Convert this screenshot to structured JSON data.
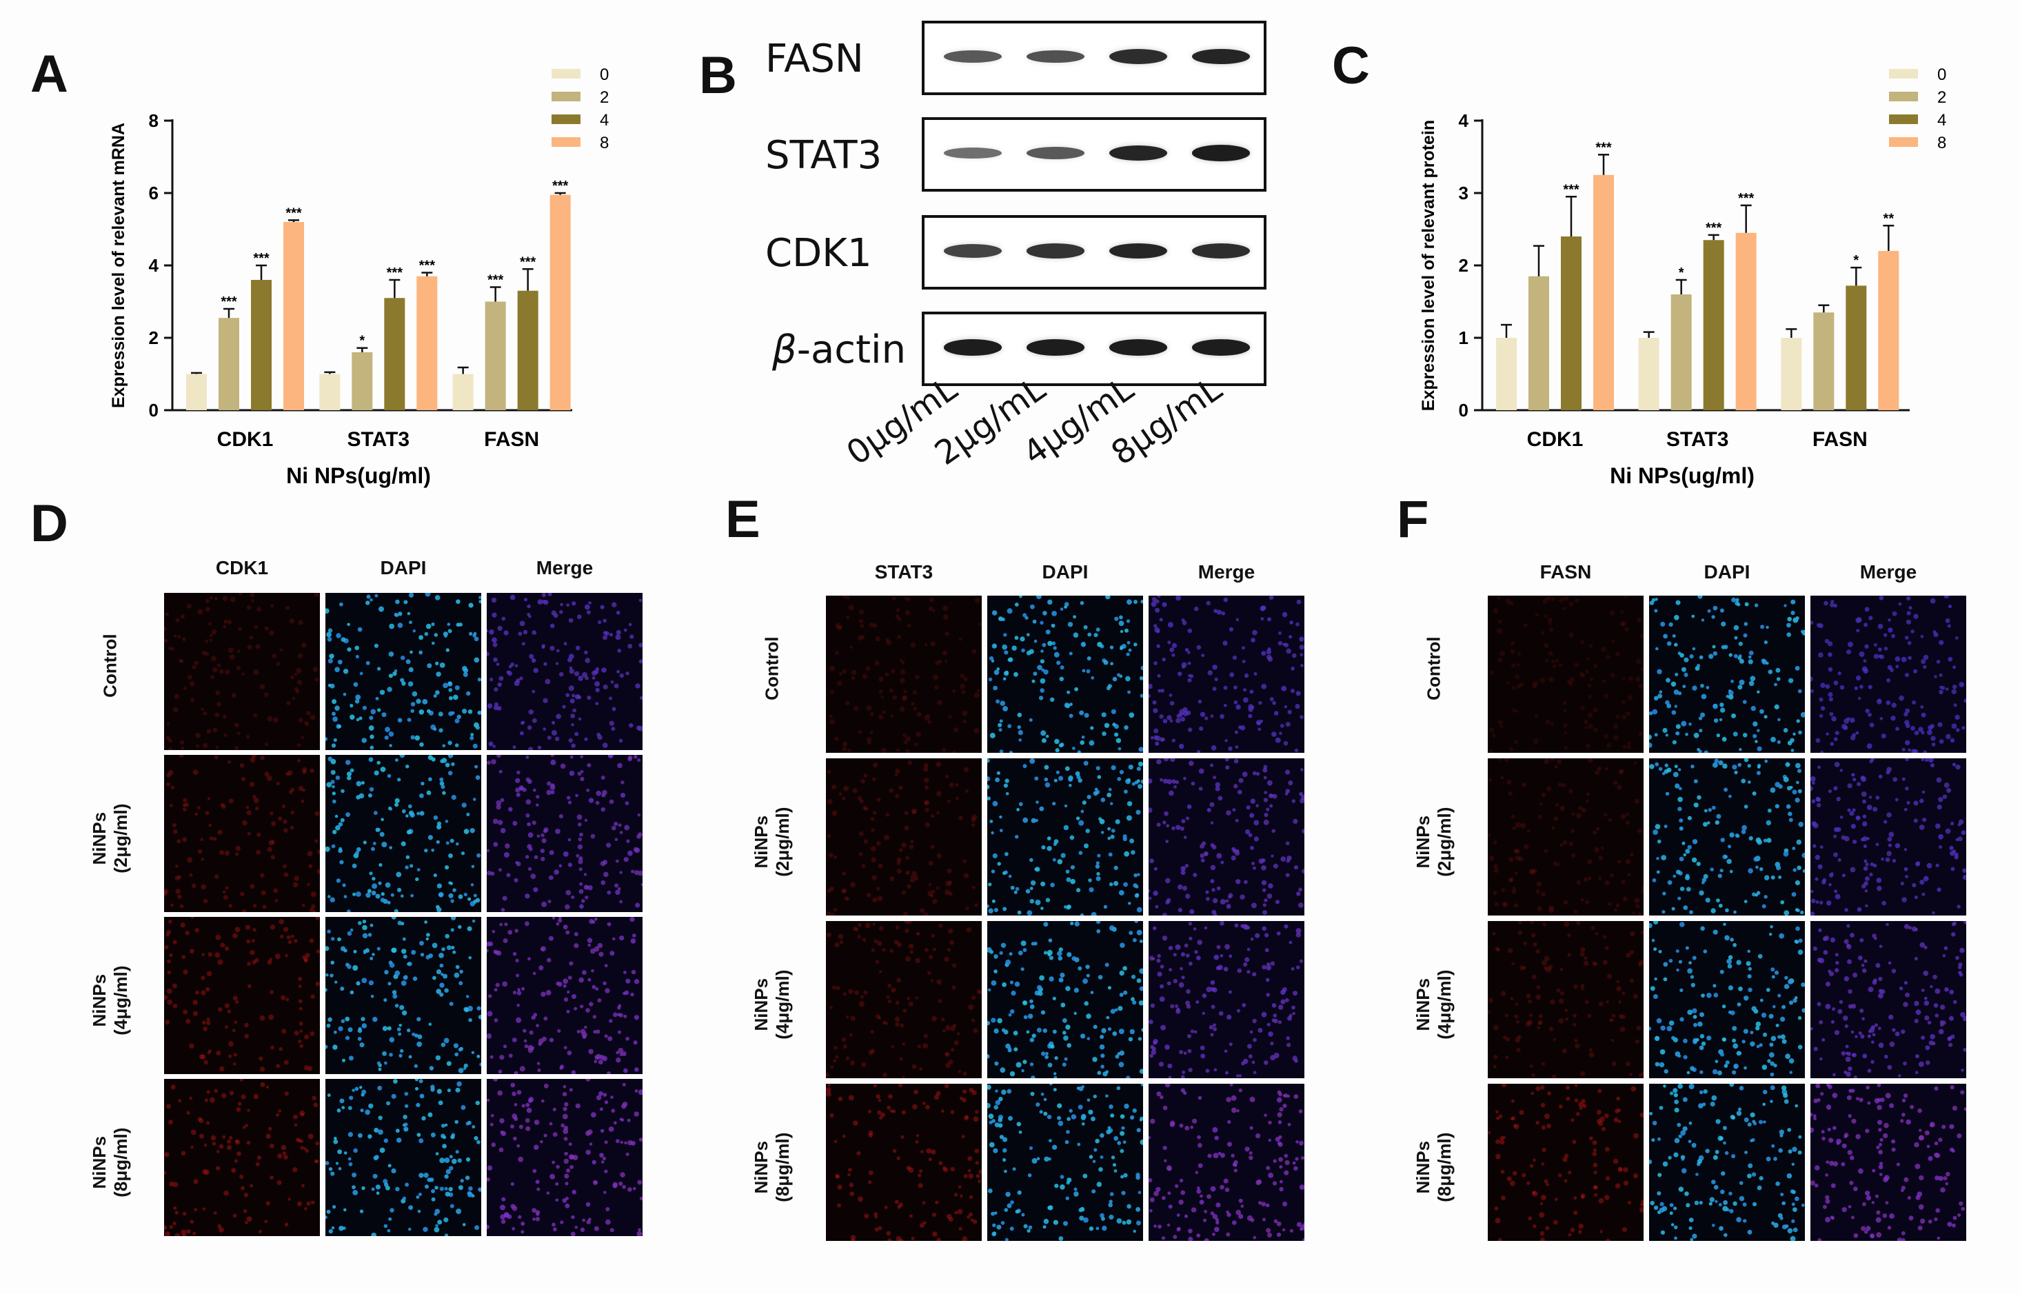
{
  "panels": {
    "A": "A",
    "B": "B",
    "C": "C",
    "D": "D",
    "E": "E",
    "F": "F"
  },
  "colors": {
    "c0": "#efe6c6",
    "c2": "#c2b47c",
    "c4": "#8b7a2d",
    "c8": "#fcb57e"
  },
  "chart_data": [
    {
      "id": "A",
      "type": "bar",
      "ylabel": "Expression level of relevant mRNA",
      "xlabel": "Ni NPs(ug/ml)",
      "categories": [
        "CDK1",
        "STAT3",
        "FASN"
      ],
      "ylim": [
        0,
        8
      ],
      "yticks": [
        "0",
        "2",
        "4",
        "6",
        "8"
      ],
      "legend": [
        "0",
        "2",
        "4",
        "8"
      ],
      "series": [
        {
          "name": "0",
          "values": [
            1.0,
            1.0,
            1.0
          ],
          "errors": [
            0.03,
            0.05,
            0.18
          ],
          "sig": [
            "",
            "",
            ""
          ]
        },
        {
          "name": "2",
          "values": [
            2.55,
            1.6,
            3.0
          ],
          "errors": [
            0.25,
            0.12,
            0.4
          ],
          "sig": [
            "***",
            "*",
            "***"
          ]
        },
        {
          "name": "4",
          "values": [
            3.6,
            3.1,
            3.3
          ],
          "errors": [
            0.4,
            0.5,
            0.6
          ],
          "sig": [
            "***",
            "***",
            "***"
          ]
        },
        {
          "name": "8",
          "values": [
            5.2,
            3.7,
            5.95
          ],
          "errors": [
            0.05,
            0.1,
            0.05
          ],
          "sig": [
            "***",
            "***",
            "***"
          ]
        }
      ]
    },
    {
      "id": "C",
      "type": "bar",
      "ylabel": "Expression level of relevant protein",
      "xlabel": "Ni NPs(ug/ml)",
      "categories": [
        "CDK1",
        "STAT3",
        "FASN"
      ],
      "ylim": [
        0,
        4
      ],
      "yticks": [
        "0",
        "1",
        "2",
        "3",
        "4"
      ],
      "legend": [
        "0",
        "2",
        "4",
        "8"
      ],
      "series": [
        {
          "name": "0",
          "values": [
            1.0,
            1.0,
            1.0
          ],
          "errors": [
            0.18,
            0.08,
            0.12
          ],
          "sig": [
            "",
            "",
            ""
          ]
        },
        {
          "name": "2",
          "values": [
            1.85,
            1.6,
            1.35
          ],
          "errors": [
            0.42,
            0.2,
            0.1
          ],
          "sig": [
            "",
            "*",
            ""
          ]
        },
        {
          "name": "4",
          "values": [
            2.4,
            2.35,
            1.72
          ],
          "errors": [
            0.55,
            0.07,
            0.25
          ],
          "sig": [
            "***",
            "***",
            "*"
          ]
        },
        {
          "name": "8",
          "values": [
            3.25,
            2.45,
            2.2
          ],
          "errors": [
            0.28,
            0.38,
            0.35
          ],
          "sig": [
            "***",
            "***",
            "**"
          ]
        }
      ]
    }
  ],
  "blot": {
    "rows": [
      {
        "label": "FASN",
        "intensity": [
          0.55,
          0.6,
          0.85,
          0.9
        ]
      },
      {
        "label": "STAT3",
        "intensity": [
          0.4,
          0.55,
          0.9,
          0.95
        ]
      },
      {
        "label": "CDK1",
        "intensity": [
          0.7,
          0.8,
          0.9,
          0.85
        ]
      },
      {
        "label": "-actin",
        "greek": "β",
        "intensity": [
          0.95,
          0.95,
          0.95,
          0.95
        ]
      }
    ],
    "lanes": [
      "0μg/mL",
      "2μg/mL",
      "4μg/mL",
      "8μg/mL"
    ]
  },
  "if_panels": [
    {
      "id": "D",
      "columns": [
        "CDK1",
        "DAPI",
        "Merge"
      ],
      "rows": [
        "Control",
        "NiNPs\n(2μg/ml)",
        "NiNPs\n(4μg/ml)",
        "NiNPs\n(8μg/ml)"
      ],
      "red_level": [
        0.25,
        0.45,
        0.55,
        0.6
      ]
    },
    {
      "id": "E",
      "columns": [
        "STAT3",
        "DAPI",
        "Merge"
      ],
      "rows": [
        "Control",
        "NiNPs\n(2μg/ml)",
        "NiNPs\n(4μg/ml)",
        "NiNPs\n(8μg/ml)"
      ],
      "red_level": [
        0.2,
        0.3,
        0.35,
        0.6
      ]
    },
    {
      "id": "F",
      "columns": [
        "FASN",
        "DAPI",
        "Merge"
      ],
      "rows": [
        "Control",
        "NiNPs\n(2μg/ml)",
        "NiNPs\n(4μg/ml)",
        "NiNPs\n(8μg/ml)"
      ],
      "red_level": [
        0.1,
        0.2,
        0.3,
        0.6
      ]
    }
  ]
}
